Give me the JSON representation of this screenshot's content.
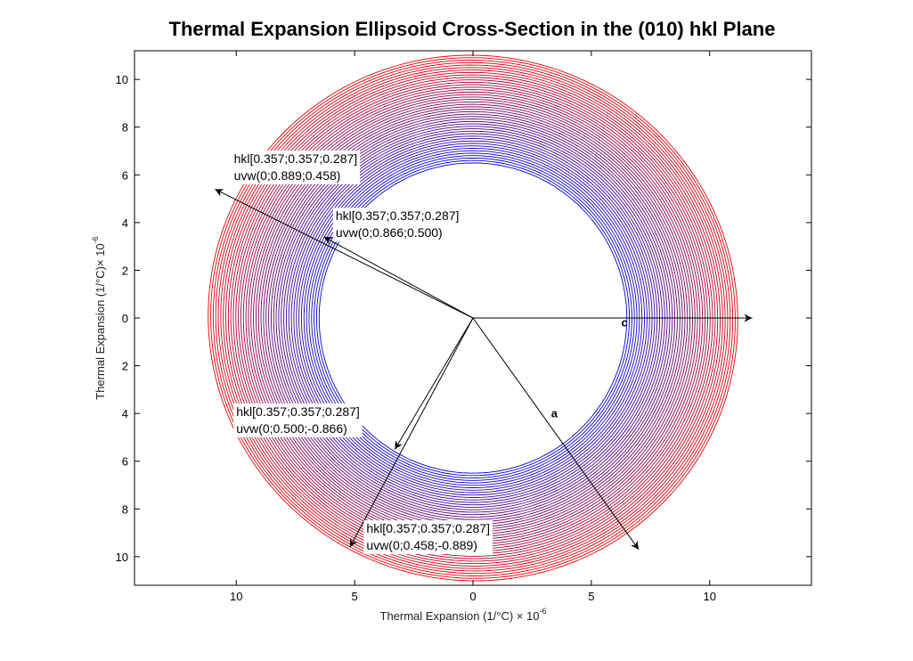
{
  "chart_data": {
    "type": "line",
    "title": "Thermal Expansion Ellipsoid Cross-Section in the (010) hkl Plane",
    "xlabel": "Thermal Expansion (1/°C) × 10",
    "xlabel_exp": "-6",
    "ylabel": "Thermal Expansion (1/°C)× 10",
    "ylabel_exp": "-6",
    "xlim": [
      -14.3,
      14.3
    ],
    "ylim": [
      -11.2,
      11.2
    ],
    "x_ticks": [
      -10,
      -5,
      0,
      5,
      10
    ],
    "x_tick_labels": [
      "10",
      "5",
      "0",
      "5",
      "10"
    ],
    "y_ticks": [
      10,
      8,
      6,
      4,
      2,
      0,
      -2,
      -4,
      -6,
      -8,
      -10
    ],
    "y_tick_labels": [
      "10",
      "8",
      "6",
      "4",
      "2",
      "0",
      "2",
      "4",
      "6",
      "8",
      "10"
    ],
    "grid": false,
    "ring": {
      "inner": {
        "a": 6.5,
        "b": 6.5,
        "tilt_deg": 0
      },
      "outer": {
        "a": 11.2,
        "b": 11.0,
        "tilt_deg": -15
      },
      "count": 45,
      "inner_color": "#0000cc",
      "outer_color": "#e00000"
    },
    "vectors": [
      {
        "name": "c",
        "label": "c",
        "x": 11.8,
        "y": 0.0
      },
      {
        "name": "a",
        "label": "a",
        "x": 7.0,
        "y": -9.7
      },
      {
        "name": "uvw-0-889-458",
        "x": -10.9,
        "y": 5.4
      },
      {
        "name": "uvw-0-866-500",
        "x": -6.3,
        "y": 3.4
      },
      {
        "name": "uvw-0-500-m866",
        "x": -3.3,
        "y": -5.5
      },
      {
        "name": "uvw-0-458-m889",
        "x": -5.2,
        "y": -9.6
      }
    ],
    "annotations": [
      {
        "name": "annot-uvw-0-889-458",
        "line1": "hkl[0.357;0.357;0.287]",
        "line2": "uvw(0;0.889;0.458)",
        "x": -10.1,
        "y": 6.5
      },
      {
        "name": "annot-uvw-0-866-500",
        "line1": "hkl[0.357;0.357;0.287]",
        "line2": "uvw(0;0.866;0.500)",
        "x": -5.8,
        "y": 4.1
      },
      {
        "name": "annot-uvw-0-500-m866",
        "line1": "hkl[0.357;0.357;0.287]",
        "line2": "uvw(0;0.500;-0.866)",
        "x": -10.0,
        "y": -4.1
      },
      {
        "name": "annot-uvw-0-458-m889",
        "line1": "hkl[0.357;0.357;0.287]",
        "line2": "uvw(0;0.458;-0.889)",
        "x": -4.5,
        "y": -9.0
      }
    ]
  }
}
